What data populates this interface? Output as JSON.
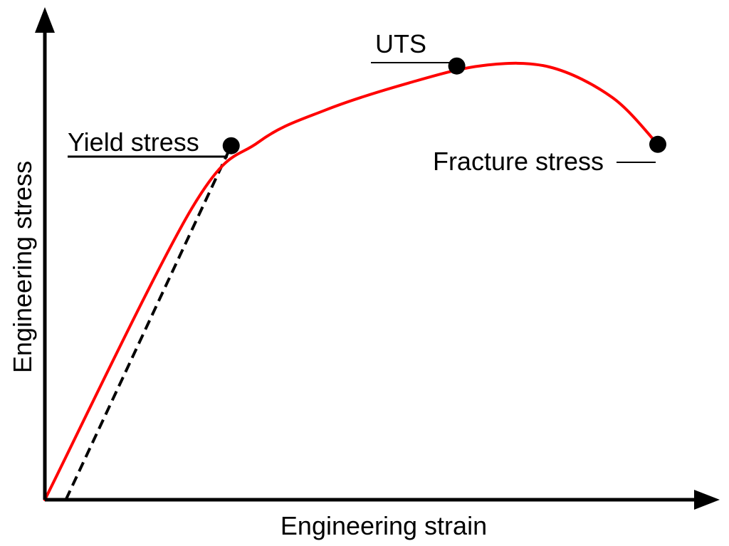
{
  "chart_data": {
    "type": "line",
    "title": "",
    "xlabel": "Engineering strain",
    "ylabel": "Engineering stress",
    "ticks": "none",
    "grid": false,
    "legend": "none",
    "series": [
      {
        "kind": "curve",
        "color": "#ff0000",
        "points": [
          [
            0.0,
            0.0
          ],
          [
            0.21,
            0.64
          ],
          [
            0.305,
            0.785
          ],
          [
            0.4,
            0.855
          ],
          [
            0.52,
            0.915
          ],
          [
            0.625,
            0.953
          ],
          [
            0.72,
            0.95
          ],
          [
            0.81,
            0.883
          ],
          [
            0.875,
            0.78
          ]
        ]
      },
      {
        "kind": "offset-line",
        "color": "#000000",
        "dashed": true,
        "points": [
          [
            0.03,
            0.0
          ],
          [
            0.266,
            0.777
          ]
        ]
      }
    ],
    "annotations": [
      {
        "label": "Yield stress",
        "point": [
          0.266,
          0.777
        ],
        "side": "left"
      },
      {
        "label": "UTS",
        "point": [
          0.588,
          0.952
        ],
        "side": "left"
      },
      {
        "label": "Fracture stress",
        "point": [
          0.875,
          0.78
        ],
        "side": "left"
      }
    ],
    "colors": {
      "curve": "#ff0000",
      "axes": "#000000",
      "markers": "#000000"
    }
  }
}
